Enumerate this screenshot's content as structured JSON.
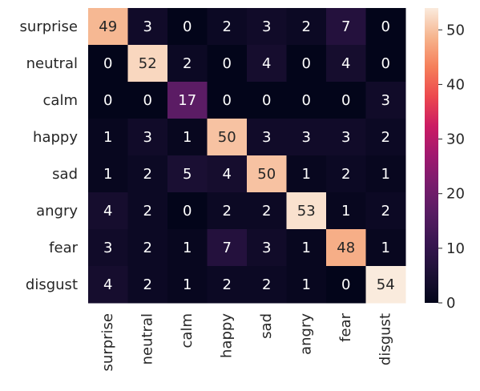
{
  "chart_data": {
    "type": "heatmap",
    "title": "",
    "xlabel": "",
    "ylabel": "",
    "rows": [
      "surprise",
      "neutral",
      "calm",
      "happy",
      "sad",
      "angry",
      "fear",
      "disgust"
    ],
    "cols": [
      "surprise",
      "neutral",
      "calm",
      "happy",
      "sad",
      "angry",
      "fear",
      "disgust"
    ],
    "values": [
      [
        49,
        3,
        0,
        2,
        3,
        2,
        7,
        0
      ],
      [
        0,
        52,
        2,
        0,
        4,
        0,
        4,
        0
      ],
      [
        0,
        0,
        17,
        0,
        0,
        0,
        0,
        3
      ],
      [
        1,
        3,
        1,
        50,
        3,
        3,
        3,
        2
      ],
      [
        1,
        2,
        5,
        4,
        50,
        1,
        2,
        1
      ],
      [
        4,
        2,
        0,
        2,
        2,
        53,
        1,
        2
      ],
      [
        3,
        2,
        1,
        7,
        3,
        1,
        48,
        1
      ],
      [
        4,
        2,
        1,
        2,
        2,
        1,
        0,
        54
      ]
    ],
    "colorbar": {
      "min": 0,
      "max": 54,
      "ticks": [
        0,
        10,
        20,
        30,
        40,
        50
      ],
      "colormap": "rocket"
    }
  }
}
